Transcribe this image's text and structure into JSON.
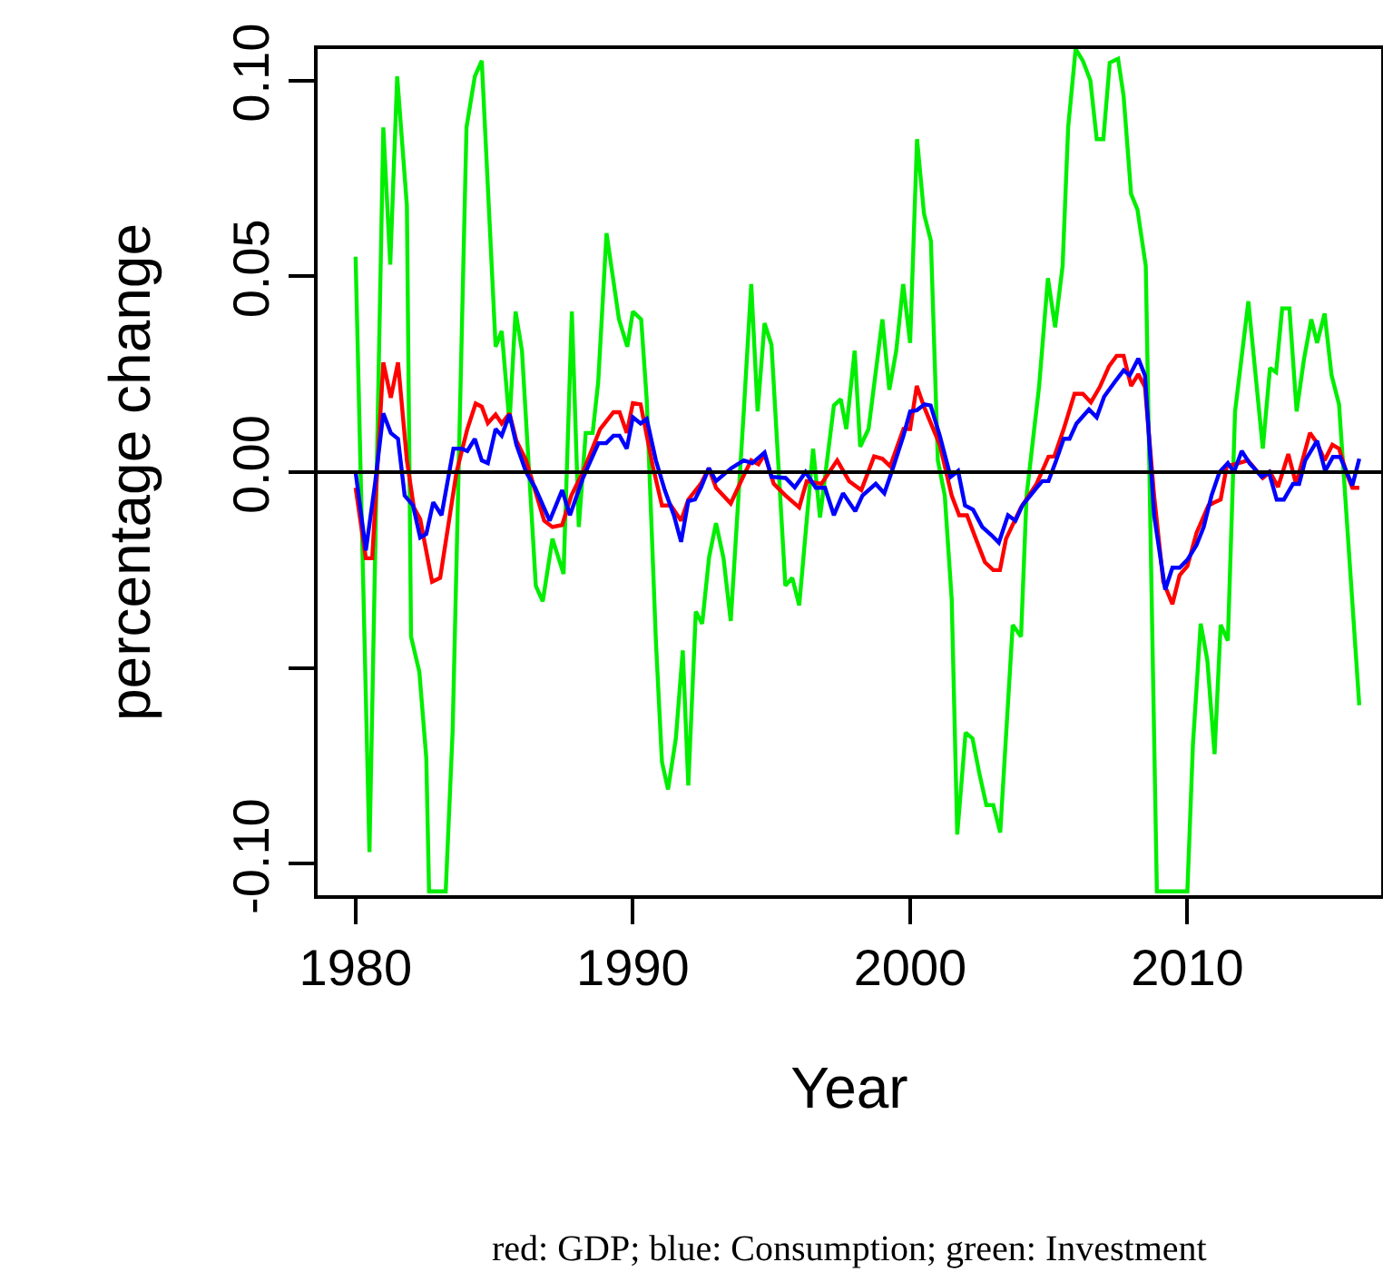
{
  "chart_data": {
    "type": "line",
    "xlabel": "Year",
    "ylabel": "percentage change",
    "annotations": [
      "red: GDP; blue: Consumption; green: Investment"
    ],
    "xlim": [
      1978.63,
      2016.99
    ],
    "ylim": [
      -0.108,
      0.108
    ],
    "xticks": [
      1980,
      1990,
      2000,
      2010
    ],
    "yticks": [
      {
        "value": -0.1,
        "label": "-0.10"
      },
      {
        "value": -0.05,
        "label": null
      },
      {
        "value": 0,
        "label": "0.00"
      },
      {
        "value": 0.05,
        "label": "0.05"
      },
      {
        "value": 0.1,
        "label": "0.10"
      }
    ],
    "grid": false,
    "marker": "none",
    "line_style": "solid",
    "ref_lines": [
      {
        "axis": "y",
        "value": 0,
        "color": "#000000"
      }
    ],
    "series": [
      {
        "color": "#00ee00",
        "x": [
          1980.0,
          1980.5,
          1981.0,
          1981.25,
          1981.5,
          1981.85,
          1982.0,
          1982.3,
          1982.55,
          1982.65,
          1983.25,
          1983.5,
          1984.0,
          1984.3,
          1984.55,
          1985.05,
          1985.27,
          1985.55,
          1985.77,
          1986.0,
          1986.5,
          1986.75,
          1987.1,
          1987.5,
          1987.8,
          1988.05,
          1988.3,
          1988.55,
          1988.75,
          1989.05,
          1989.5,
          1989.8,
          1990.0,
          1990.3,
          1990.5,
          1990.83,
          1991.05,
          1991.27,
          1991.55,
          1991.8,
          1992.0,
          1992.27,
          1992.5,
          1992.75,
          1993.0,
          1993.27,
          1993.53,
          1994.0,
          1994.27,
          1994.5,
          1994.75,
          1995.0,
          1995.5,
          1995.75,
          1996.0,
          1996.5,
          1996.75,
          1997.25,
          1997.5,
          1997.7,
          1998.0,
          1998.2,
          1998.5,
          1999.0,
          1999.25,
          1999.5,
          1999.75,
          2000.0,
          2000.25,
          2000.5,
          2000.75,
          2001.0,
          2001.25,
          2001.5,
          2001.7,
          2002.0,
          2002.25,
          2002.5,
          2002.75,
          2003.0,
          2003.25,
          2003.7,
          2004.0,
          2004.2,
          2004.65,
          2004.97,
          2005.23,
          2005.5,
          2005.7,
          2005.97,
          2006.23,
          2006.5,
          2006.73,
          2006.97,
          2007.2,
          2007.5,
          2007.7,
          2007.97,
          2008.2,
          2008.5,
          2008.9,
          2010.0,
          2010.2,
          2010.48,
          2010.72,
          2010.98,
          2011.2,
          2011.46,
          2011.72,
          2012.2,
          2012.72,
          2012.98,
          2013.2,
          2013.42,
          2013.68,
          2013.94,
          2014.2,
          2014.47,
          2014.68,
          2014.95,
          2015.2,
          2015.47,
          2016.2
        ],
        "values": [
          0.055,
          -0.097,
          0.088,
          0.053,
          0.101,
          0.068,
          -0.042,
          -0.051,
          -0.073,
          -0.107,
          -0.107,
          -0.066,
          0.088,
          0.101,
          0.105,
          0.032,
          0.036,
          0.0125,
          0.041,
          0.031,
          -0.029,
          -0.033,
          -0.017,
          -0.026,
          0.041,
          -0.014,
          0.01,
          0.01,
          0.023,
          0.061,
          0.039,
          0.032,
          0.041,
          0.039,
          0.0185,
          -0.043,
          -0.074,
          -0.081,
          -0.068,
          -0.0455,
          -0.08,
          -0.0356,
          -0.0387,
          -0.0217,
          -0.013,
          -0.022,
          -0.038,
          0.0155,
          0.048,
          0.0155,
          0.038,
          0.0325,
          -0.029,
          -0.027,
          -0.034,
          0.006,
          -0.0116,
          0.017,
          0.0186,
          0.011,
          0.031,
          0.0065,
          0.011,
          0.039,
          0.021,
          0.031,
          0.048,
          0.033,
          0.085,
          0.066,
          0.059,
          0.003,
          -0.006,
          -0.0325,
          -0.0925,
          -0.0665,
          -0.068,
          -0.077,
          -0.085,
          -0.085,
          -0.092,
          -0.039,
          -0.042,
          -0.006,
          0.0217,
          0.0495,
          0.037,
          0.0526,
          0.088,
          0.108,
          0.105,
          0.1,
          0.085,
          0.085,
          0.1045,
          0.1055,
          0.096,
          0.071,
          0.067,
          0.0526,
          -0.107,
          -0.107,
          -0.0696,
          -0.0387,
          -0.048,
          -0.072,
          -0.039,
          -0.043,
          0.0155,
          0.0436,
          0.006,
          0.0266,
          0.0255,
          0.0418,
          0.0418,
          0.0155,
          0.0286,
          0.039,
          0.033,
          0.0405,
          0.0247,
          0.0173,
          -0.0595
        ]
      },
      {
        "color": "#ff0000",
        "x": [
          1980.0,
          1980.37,
          1980.6,
          1981.0,
          1981.27,
          1981.53,
          1981.85,
          1982.1,
          1982.33,
          1982.76,
          1983.05,
          1983.64,
          1984.03,
          1984.33,
          1984.55,
          1984.77,
          1985.05,
          1985.27,
          1985.55,
          1985.8,
          1986.15,
          1986.8,
          1987.1,
          1987.45,
          1987.78,
          1988.2,
          1988.82,
          1989.3,
          1989.52,
          1989.78,
          1990.0,
          1990.28,
          1990.72,
          1991.05,
          1991.37,
          1991.74,
          1992.0,
          1992.45,
          1992.74,
          1993.0,
          1993.53,
          1994.0,
          1994.27,
          1994.53,
          1994.75,
          1995.08,
          1995.51,
          1996.0,
          1996.27,
          1996.8,
          1997.37,
          1997.8,
          1998.24,
          1998.7,
          1999.0,
          1999.28,
          1999.76,
          2000.0,
          2000.24,
          2000.5,
          2001.07,
          2001.5,
          2001.77,
          2002.05,
          2002.37,
          2002.7,
          2003.0,
          2003.24,
          2003.46,
          2004.0,
          2004.56,
          2004.99,
          2005.2,
          2005.54,
          2005.93,
          2006.23,
          2006.52,
          2006.84,
          2007.17,
          2007.45,
          2007.7,
          2007.97,
          2008.23,
          2008.47,
          2008.8,
          2009.13,
          2009.46,
          2009.72,
          2010.0,
          2010.33,
          2010.76,
          2010.98,
          2011.2,
          2011.42,
          2011.85,
          2012.18,
          2012.72,
          2012.98,
          2013.27,
          2013.64,
          2013.92,
          2014.42,
          2014.68,
          2014.95,
          2015.23,
          2015.47,
          2015.77,
          2015.95,
          2016.2
        ],
        "values": [
          -0.004,
          -0.022,
          -0.022,
          0.028,
          0.019,
          0.028,
          0.003,
          -0.009,
          -0.012,
          -0.028,
          -0.027,
          0,
          0.011,
          0.0175,
          0.0167,
          0.0125,
          0.0147,
          0.0124,
          0.015,
          0.008,
          0.003,
          -0.0124,
          -0.014,
          -0.0135,
          -0.006,
          0,
          0.011,
          0.0153,
          0.0153,
          0.01,
          0.0176,
          0.0173,
          0.0015,
          -0.0085,
          -0.0085,
          -0.0124,
          -0.007,
          -0.003,
          0.001,
          -0.004,
          -0.008,
          -0.0008,
          0.003,
          0.002,
          0.0046,
          -0.003,
          -0.006,
          -0.009,
          -0.0023,
          -0.003,
          0.003,
          -0.0023,
          -0.0046,
          0.004,
          0.0034,
          0.0015,
          0.011,
          0.011,
          0.022,
          0.0167,
          0.007,
          -0.006,
          -0.011,
          -0.011,
          -0.017,
          -0.023,
          -0.025,
          -0.025,
          -0.017,
          -0.009,
          -0.003,
          0.0039,
          0.004,
          0.011,
          0.02,
          0.02,
          0.0178,
          0.0217,
          0.027,
          0.0297,
          0.0297,
          0.022,
          0.025,
          0.0217,
          -0.006,
          -0.028,
          -0.0337,
          -0.0263,
          -0.024,
          -0.0155,
          -0.0085,
          -0.0077,
          -0.007,
          0.0015,
          0.0023,
          0.003,
          -0.0015,
          0,
          -0.0038,
          0.0046,
          -0.003,
          0.01,
          0.0074,
          0.003,
          0.007,
          0.006,
          -0.0008,
          -0.004,
          -0.004
        ]
      },
      {
        "color": "#0000ff",
        "x": [
          1980.0,
          1980.37,
          1980.7,
          1981.0,
          1981.27,
          1981.53,
          1981.77,
          1982.07,
          1982.33,
          1982.55,
          1982.8,
          1983.1,
          1983.53,
          1983.82,
          1984.03,
          1984.3,
          1984.55,
          1984.77,
          1985.05,
          1985.27,
          1985.55,
          1985.8,
          1986.15,
          1986.47,
          1987.0,
          1987.45,
          1987.73,
          1988.2,
          1988.76,
          1989.04,
          1989.3,
          1989.52,
          1989.78,
          1990.0,
          1990.28,
          1990.5,
          1990.83,
          1991.15,
          1991.48,
          1991.74,
          1992.0,
          1992.24,
          1992.46,
          1992.74,
          1993.0,
          1993.55,
          1994.0,
          1994.31,
          1994.75,
          1995.0,
          1995.51,
          1995.84,
          1996.23,
          1996.6,
          1996.93,
          1997.25,
          1997.58,
          1998.02,
          1998.28,
          1998.76,
          1999.07,
          1999.37,
          1999.76,
          2000.0,
          2000.24,
          2000.52,
          2000.74,
          2001.07,
          2001.46,
          2001.73,
          2001.98,
          2002.27,
          2002.6,
          2002.92,
          2003.2,
          2003.53,
          2003.8,
          2004.05,
          2004.56,
          2004.77,
          2004.99,
          2005.27,
          2005.54,
          2005.75,
          2006.0,
          2006.45,
          2006.73,
          2007.0,
          2007.38,
          2007.7,
          2007.92,
          2008.23,
          2008.47,
          2008.8,
          2009.2,
          2009.46,
          2009.72,
          2010.0,
          2010.33,
          2010.59,
          2010.87,
          2011.16,
          2011.46,
          2011.68,
          2011.96,
          2012.24,
          2012.68,
          2012.94,
          2013.22,
          2013.48,
          2013.81,
          2014.03,
          2014.25,
          2014.68,
          2014.97,
          2015.25,
          2015.51,
          2015.95,
          2016.2
        ],
        "values": [
          0,
          -0.02,
          -0.003,
          0.015,
          0.01,
          0.0085,
          -0.006,
          -0.0085,
          -0.0167,
          -0.0158,
          -0.0077,
          -0.011,
          0.006,
          0.006,
          0.0054,
          0.0085,
          0.003,
          0.0023,
          0.011,
          0.0093,
          0.0147,
          0.007,
          0,
          -0.0039,
          -0.0124,
          -0.0046,
          -0.011,
          -0.0015,
          0.0074,
          0.0074,
          0.0093,
          0.0093,
          0.006,
          0.014,
          0.0124,
          0.0136,
          0.003,
          -0.0046,
          -0.011,
          -0.0178,
          -0.0074,
          -0.007,
          -0.0039,
          0.001,
          -0.0023,
          0.001,
          0.003,
          0.0023,
          0.005,
          -0.0012,
          -0.0015,
          -0.0039,
          0,
          -0.004,
          -0.004,
          -0.011,
          -0.0054,
          -0.01,
          -0.006,
          -0.003,
          -0.0054,
          0.0008,
          0.0093,
          0.0155,
          0.0158,
          0.0173,
          0.017,
          0.0093,
          -0.0012,
          0.0003,
          -0.0085,
          -0.0096,
          -0.014,
          -0.016,
          -0.018,
          -0.011,
          -0.0124,
          -0.0085,
          -0.004,
          -0.0023,
          -0.0023,
          0.003,
          0.0085,
          0.0085,
          0.0124,
          0.016,
          0.014,
          0.0193,
          0.023,
          0.026,
          0.0247,
          0.029,
          0.0247,
          -0.011,
          -0.03,
          -0.0244,
          -0.0244,
          -0.0224,
          -0.0186,
          -0.014,
          -0.006,
          0,
          0.0023,
          0,
          0.0054,
          0.0023,
          -0.0012,
          0,
          -0.007,
          -0.007,
          -0.003,
          -0.003,
          0.003,
          0.008,
          0.0003,
          0.0039,
          0.0039,
          -0.0034,
          0.0034
        ]
      }
    ]
  }
}
